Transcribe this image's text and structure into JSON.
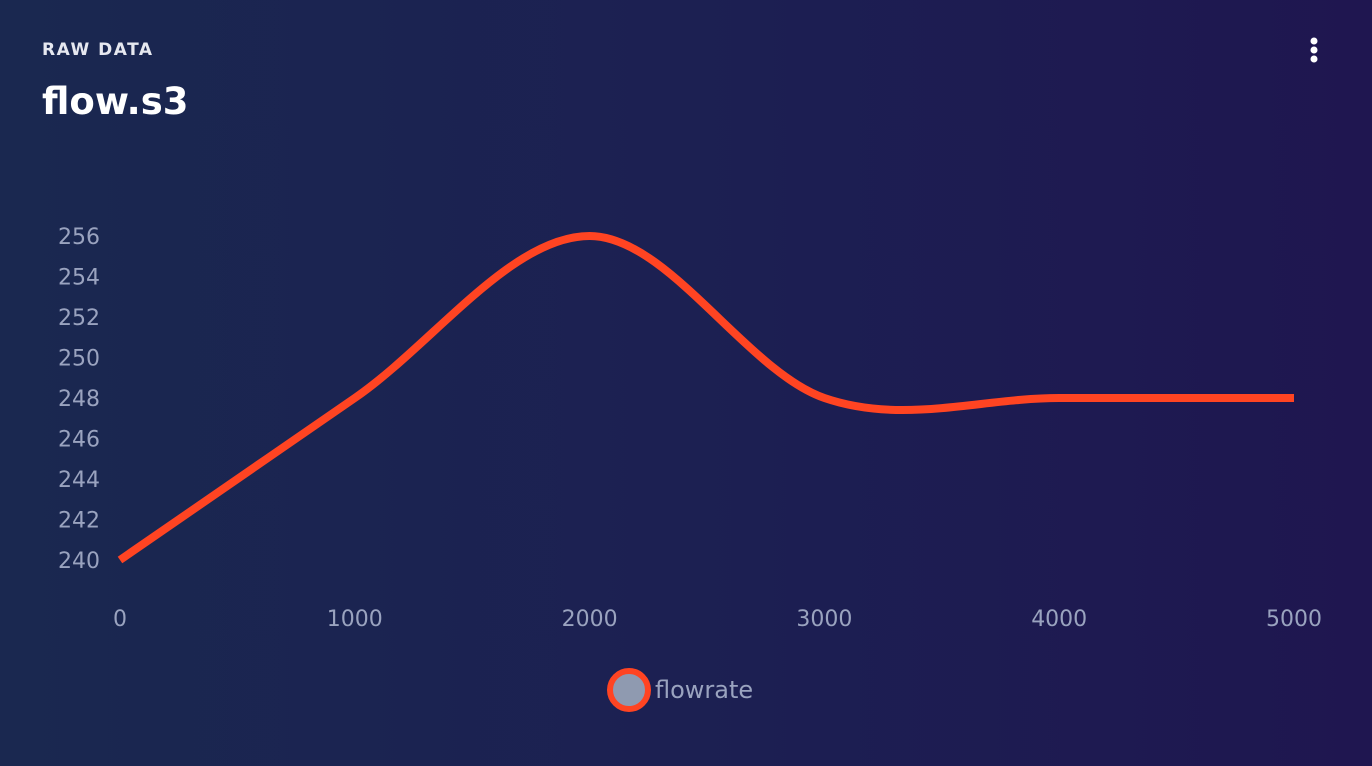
{
  "header": {
    "eyebrow": "RAW DATA",
    "title": "flow.s3",
    "menu_icon": "more-vertical-icon"
  },
  "colors": {
    "background_start": "#1a2850",
    "background_end": "#1f1650",
    "line": "#ff4422",
    "tick_text": "#9aa3bf",
    "legend_fill": "#8f9ab0"
  },
  "chart_data": {
    "type": "line",
    "smooth": true,
    "grid": false,
    "legend_position": "bottom-center",
    "title": "",
    "xlabel": "",
    "ylabel": "",
    "xlim": [
      0,
      5000
    ],
    "ylim": [
      240,
      256
    ],
    "x_ticks": [
      0,
      1000,
      2000,
      3000,
      4000,
      5000
    ],
    "y_ticks": [
      240,
      242,
      244,
      246,
      248,
      250,
      252,
      254,
      256
    ],
    "x": [
      0,
      1000,
      2000,
      3000,
      4000,
      5000
    ],
    "series": [
      {
        "name": "flowrate",
        "color": "#ff4422",
        "values": [
          240,
          248,
          256,
          248,
          248,
          248
        ]
      }
    ]
  }
}
